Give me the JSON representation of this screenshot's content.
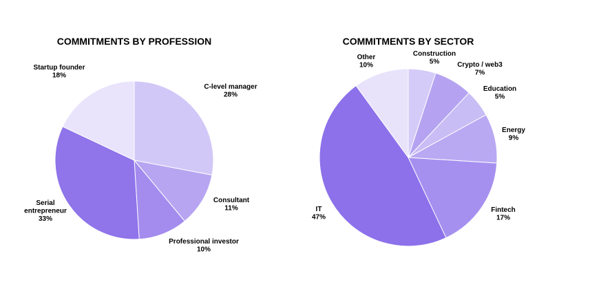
{
  "chart_data": [
    {
      "type": "pie",
      "title": "COMMITMENTS BY PROFESSION",
      "start_angle_deg": 0,
      "direction": "clockwise",
      "slices": [
        {
          "label": [
            "C-level manager"
          ],
          "pct_label": "28%",
          "value": 28,
          "color": "#d2c8f7"
        },
        {
          "label": [
            "Consultant"
          ],
          "pct_label": "11%",
          "value": 11,
          "color": "#b7a5f2"
        },
        {
          "label": [
            "Professional investor"
          ],
          "pct_label": "10%",
          "value": 10,
          "color": "#a38cee"
        },
        {
          "label": [
            "Serial",
            "entrepreneur"
          ],
          "pct_label": "33%",
          "value": 33,
          "color": "#8f74ea"
        },
        {
          "label": [
            "Startup founder"
          ],
          "pct_label": "18%",
          "value": 18,
          "color": "#e9e4fb"
        }
      ]
    },
    {
      "type": "pie",
      "title": "COMMITMENTS BY SECTOR",
      "start_angle_deg": 0,
      "direction": "clockwise",
      "slices": [
        {
          "label": [
            "Construction"
          ],
          "pct_label": "5%",
          "value": 5,
          "color": "#d5cbf8"
        },
        {
          "label": [
            "Crypto / web3"
          ],
          "pct_label": "7%",
          "value": 7,
          "color": "#b5a3f1"
        },
        {
          "label": [
            "Education"
          ],
          "pct_label": "5%",
          "value": 5,
          "color": "#c9bdf5"
        },
        {
          "label": [
            "Energy"
          ],
          "pct_label": "9%",
          "value": 9,
          "color": "#b9a8f2"
        },
        {
          "label": [
            "Fintech"
          ],
          "pct_label": "17%",
          "value": 17,
          "color": "#a690ef"
        },
        {
          "label": [
            "IT"
          ],
          "pct_label": "47%",
          "value": 47,
          "color": "#8c71ea"
        },
        {
          "label": [
            "Other"
          ],
          "pct_label": "10%",
          "value": 10,
          "color": "#e8e3fb"
        }
      ]
    }
  ]
}
